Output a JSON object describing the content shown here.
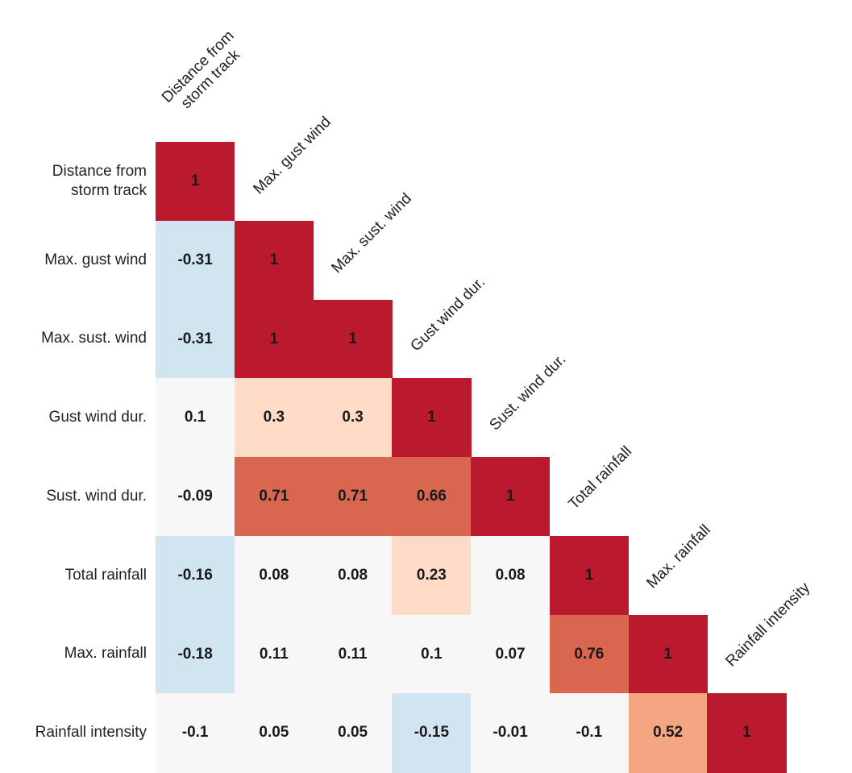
{
  "chart_data": {
    "type": "heatmap",
    "labels": [
      "Distance from\nstorm track",
      "Max. gust wind",
      "Max. sust. wind",
      "Gust wind dur.",
      "Sust. wind dur.",
      "Total rainfall",
      "Max. rainfall",
      "Rainfall intensity"
    ],
    "values": [
      [
        1,
        null,
        null,
        null,
        null,
        null,
        null,
        null
      ],
      [
        -0.31,
        1,
        null,
        null,
        null,
        null,
        null,
        null
      ],
      [
        -0.31,
        1,
        1,
        null,
        null,
        null,
        null,
        null
      ],
      [
        0.1,
        0.3,
        0.3,
        1,
        null,
        null,
        null,
        null
      ],
      [
        -0.09,
        0.71,
        0.71,
        0.66,
        1,
        null,
        null,
        null
      ],
      [
        -0.16,
        0.08,
        0.08,
        0.23,
        0.08,
        1,
        null,
        null
      ],
      [
        -0.18,
        0.11,
        0.11,
        0.1,
        0.07,
        0.76,
        1,
        null
      ],
      [
        -0.1,
        0.05,
        0.05,
        -0.15,
        -0.01,
        -0.1,
        0.52,
        1
      ]
    ],
    "colors": [
      "#053061",
      "#2166ac",
      "#4393c3",
      "#d1e5f0",
      "#f7f7f7",
      "#fddbc7",
      "#f4a582",
      "#d9664f",
      "#bb1a2e"
    ]
  }
}
